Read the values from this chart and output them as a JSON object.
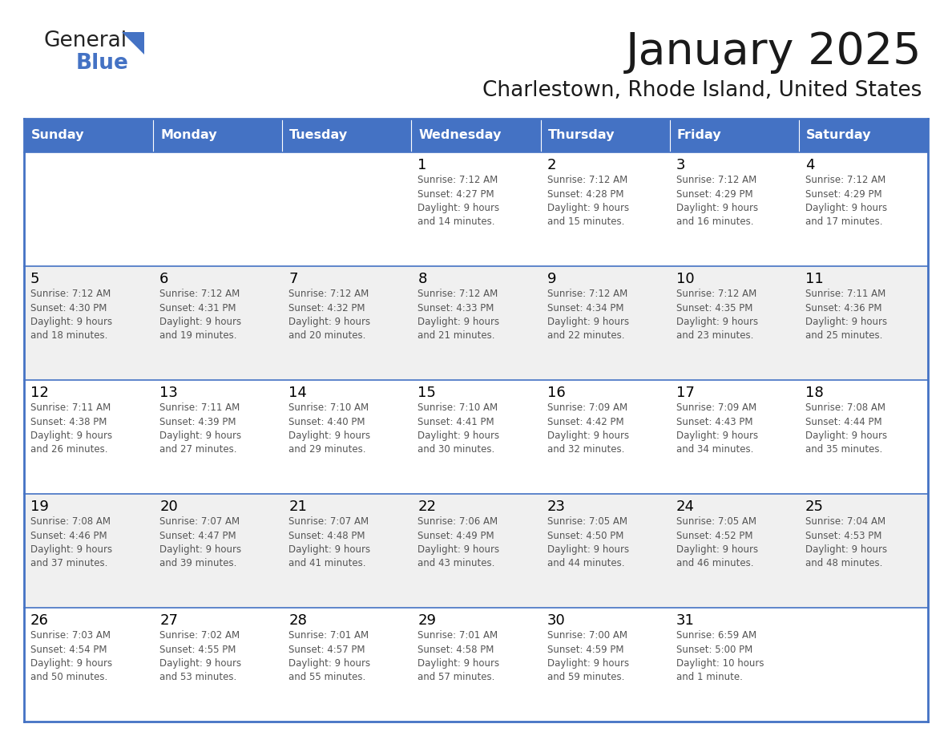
{
  "title": "January 2025",
  "subtitle": "Charlestown, Rhode Island, United States",
  "header_bg": "#4472C4",
  "header_text_color": "#FFFFFF",
  "day_names": [
    "Sunday",
    "Monday",
    "Tuesday",
    "Wednesday",
    "Thursday",
    "Friday",
    "Saturday"
  ],
  "white_row_bg": "#FFFFFF",
  "gray_row_bg": "#F0F0F0",
  "border_color": "#4472C4",
  "sep_color": "#4472C4",
  "date_color": "#000000",
  "info_color": "#555555",
  "title_color": "#1a1a1a",
  "subtitle_color": "#1a1a1a",
  "general_color": "#1a1a1a",
  "blue_color": "#4472C4",
  "calendar": [
    [
      {
        "day": "",
        "info": ""
      },
      {
        "day": "",
        "info": ""
      },
      {
        "day": "",
        "info": ""
      },
      {
        "day": "1",
        "info": "Sunrise: 7:12 AM\nSunset: 4:27 PM\nDaylight: 9 hours\nand 14 minutes."
      },
      {
        "day": "2",
        "info": "Sunrise: 7:12 AM\nSunset: 4:28 PM\nDaylight: 9 hours\nand 15 minutes."
      },
      {
        "day": "3",
        "info": "Sunrise: 7:12 AM\nSunset: 4:29 PM\nDaylight: 9 hours\nand 16 minutes."
      },
      {
        "day": "4",
        "info": "Sunrise: 7:12 AM\nSunset: 4:29 PM\nDaylight: 9 hours\nand 17 minutes."
      }
    ],
    [
      {
        "day": "5",
        "info": "Sunrise: 7:12 AM\nSunset: 4:30 PM\nDaylight: 9 hours\nand 18 minutes."
      },
      {
        "day": "6",
        "info": "Sunrise: 7:12 AM\nSunset: 4:31 PM\nDaylight: 9 hours\nand 19 minutes."
      },
      {
        "day": "7",
        "info": "Sunrise: 7:12 AM\nSunset: 4:32 PM\nDaylight: 9 hours\nand 20 minutes."
      },
      {
        "day": "8",
        "info": "Sunrise: 7:12 AM\nSunset: 4:33 PM\nDaylight: 9 hours\nand 21 minutes."
      },
      {
        "day": "9",
        "info": "Sunrise: 7:12 AM\nSunset: 4:34 PM\nDaylight: 9 hours\nand 22 minutes."
      },
      {
        "day": "10",
        "info": "Sunrise: 7:12 AM\nSunset: 4:35 PM\nDaylight: 9 hours\nand 23 minutes."
      },
      {
        "day": "11",
        "info": "Sunrise: 7:11 AM\nSunset: 4:36 PM\nDaylight: 9 hours\nand 25 minutes."
      }
    ],
    [
      {
        "day": "12",
        "info": "Sunrise: 7:11 AM\nSunset: 4:38 PM\nDaylight: 9 hours\nand 26 minutes."
      },
      {
        "day": "13",
        "info": "Sunrise: 7:11 AM\nSunset: 4:39 PM\nDaylight: 9 hours\nand 27 minutes."
      },
      {
        "day": "14",
        "info": "Sunrise: 7:10 AM\nSunset: 4:40 PM\nDaylight: 9 hours\nand 29 minutes."
      },
      {
        "day": "15",
        "info": "Sunrise: 7:10 AM\nSunset: 4:41 PM\nDaylight: 9 hours\nand 30 minutes."
      },
      {
        "day": "16",
        "info": "Sunrise: 7:09 AM\nSunset: 4:42 PM\nDaylight: 9 hours\nand 32 minutes."
      },
      {
        "day": "17",
        "info": "Sunrise: 7:09 AM\nSunset: 4:43 PM\nDaylight: 9 hours\nand 34 minutes."
      },
      {
        "day": "18",
        "info": "Sunrise: 7:08 AM\nSunset: 4:44 PM\nDaylight: 9 hours\nand 35 minutes."
      }
    ],
    [
      {
        "day": "19",
        "info": "Sunrise: 7:08 AM\nSunset: 4:46 PM\nDaylight: 9 hours\nand 37 minutes."
      },
      {
        "day": "20",
        "info": "Sunrise: 7:07 AM\nSunset: 4:47 PM\nDaylight: 9 hours\nand 39 minutes."
      },
      {
        "day": "21",
        "info": "Sunrise: 7:07 AM\nSunset: 4:48 PM\nDaylight: 9 hours\nand 41 minutes."
      },
      {
        "day": "22",
        "info": "Sunrise: 7:06 AM\nSunset: 4:49 PM\nDaylight: 9 hours\nand 43 minutes."
      },
      {
        "day": "23",
        "info": "Sunrise: 7:05 AM\nSunset: 4:50 PM\nDaylight: 9 hours\nand 44 minutes."
      },
      {
        "day": "24",
        "info": "Sunrise: 7:05 AM\nSunset: 4:52 PM\nDaylight: 9 hours\nand 46 minutes."
      },
      {
        "day": "25",
        "info": "Sunrise: 7:04 AM\nSunset: 4:53 PM\nDaylight: 9 hours\nand 48 minutes."
      }
    ],
    [
      {
        "day": "26",
        "info": "Sunrise: 7:03 AM\nSunset: 4:54 PM\nDaylight: 9 hours\nand 50 minutes."
      },
      {
        "day": "27",
        "info": "Sunrise: 7:02 AM\nSunset: 4:55 PM\nDaylight: 9 hours\nand 53 minutes."
      },
      {
        "day": "28",
        "info": "Sunrise: 7:01 AM\nSunset: 4:57 PM\nDaylight: 9 hours\nand 55 minutes."
      },
      {
        "day": "29",
        "info": "Sunrise: 7:01 AM\nSunset: 4:58 PM\nDaylight: 9 hours\nand 57 minutes."
      },
      {
        "day": "30",
        "info": "Sunrise: 7:00 AM\nSunset: 4:59 PM\nDaylight: 9 hours\nand 59 minutes."
      },
      {
        "day": "31",
        "info": "Sunrise: 6:59 AM\nSunset: 5:00 PM\nDaylight: 10 hours\nand 1 minute."
      },
      {
        "day": "",
        "info": ""
      }
    ]
  ]
}
